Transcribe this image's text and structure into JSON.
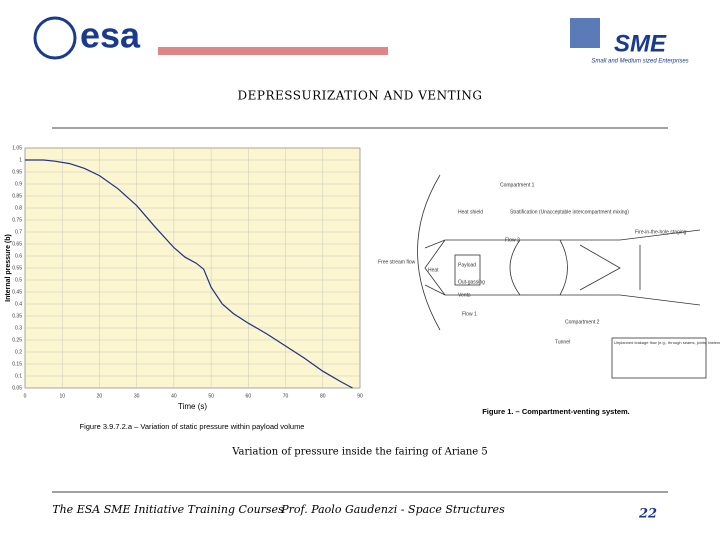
{
  "header": {
    "logo_left": "esa",
    "logo_right": "SME",
    "logo_right_sub": "Small and Medium sized Enterprises",
    "title": "DEPRESSURIZATION AND VENTING"
  },
  "chart_data": {
    "type": "line",
    "title": "Figure 3.9.7.2.a – Variation of static pressure within payload volume",
    "xlabel": "Time (s)",
    "ylabel": "Internal pressure (b)",
    "x": [
      0,
      5,
      8,
      12,
      16,
      20,
      25,
      30,
      35,
      40,
      43,
      46,
      48,
      50,
      53,
      56,
      60,
      65,
      70,
      75,
      80,
      85,
      88
    ],
    "series": [
      {
        "name": "Internal pressure",
        "color": "#1f2f8a",
        "values": [
          1,
          1,
          0.995,
          0.985,
          0.965,
          0.935,
          0.88,
          0.81,
          0.72,
          0.635,
          0.595,
          0.57,
          0.545,
          0.47,
          0.4,
          0.36,
          0.32,
          0.275,
          0.225,
          0.175,
          0.12,
          0.075,
          0.05
        ]
      }
    ],
    "xlim": [
      0,
      90
    ],
    "xticks": [
      0,
      10,
      20,
      30,
      40,
      50,
      60,
      70,
      80,
      90
    ],
    "ylim": [
      0.05,
      1.05
    ],
    "yticks": [
      1.05,
      1,
      0.95,
      0.9,
      0.85,
      0.8,
      0.75,
      0.7,
      0.65,
      0.6,
      0.55,
      0.5,
      0.45,
      0.4,
      0.35,
      0.3,
      0.25,
      0.2,
      0.15,
      0.1,
      0.05
    ],
    "grid": true,
    "background": "#fbf6cf"
  },
  "diagram": {
    "labels": [
      "Compartment 1",
      "Stratification (Unacceptable intercompartment mixing)",
      "Heat shield",
      "Flow 2",
      "Free stream flow",
      "Heat",
      "Payload",
      "Out-gassing",
      "Vents",
      "Flow 1",
      "Compartment 2",
      "Tunnel",
      "Fire-in-the-hole staging",
      "Unplanned leakage flow (e.g., through seams, joints, fasteners, hinges, nonmetallic heat shields)"
    ],
    "caption": "Figure 1. – Compartment-venting system."
  },
  "caption": "Variation of pressure inside the fairing of Ariane 5",
  "footer": {
    "left": "The ESA SME Initiative Training Courses",
    "center": "Prof. Paolo Gaudenzi - Space Structures",
    "page": "22"
  }
}
